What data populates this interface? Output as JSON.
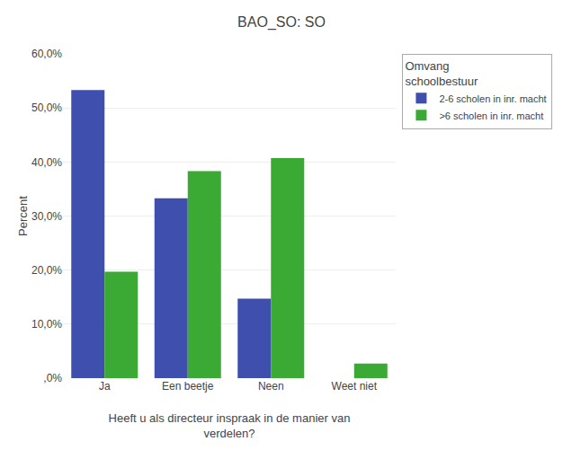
{
  "chart_data": {
    "type": "bar",
    "title": "BAO_SO: SO",
    "xlabel": "Heeft u als directeur inspraak in de manier van\nverdelen?",
    "ylabel": "Percent",
    "categories": [
      "Ja",
      "Een beetje",
      "Neen",
      "Weet niet"
    ],
    "series": [
      {
        "name": "2-6 scholen in inr. macht",
        "color": "#3f4fad",
        "values": [
          53.3,
          33.3,
          14.7,
          0.0
        ]
      },
      {
        "name": ">6 scholen in inr. macht",
        "color": "#3aaa35",
        "values": [
          19.7,
          38.3,
          40.7,
          2.7
        ]
      }
    ],
    "legend_title": "Omvang\nschoolbestuur",
    "legend": "upper right",
    "ylim": [
      0,
      60
    ],
    "yticks": [
      {
        "value": 0,
        "label": ",0%"
      },
      {
        "value": 10,
        "label": "10,0%"
      },
      {
        "value": 20,
        "label": "20,0%"
      },
      {
        "value": 30,
        "label": "30,0%"
      },
      {
        "value": 40,
        "label": "40,0%"
      },
      {
        "value": 50,
        "label": "50,0%"
      },
      {
        "value": 60,
        "label": "60,0%"
      }
    ],
    "grid": true
  }
}
